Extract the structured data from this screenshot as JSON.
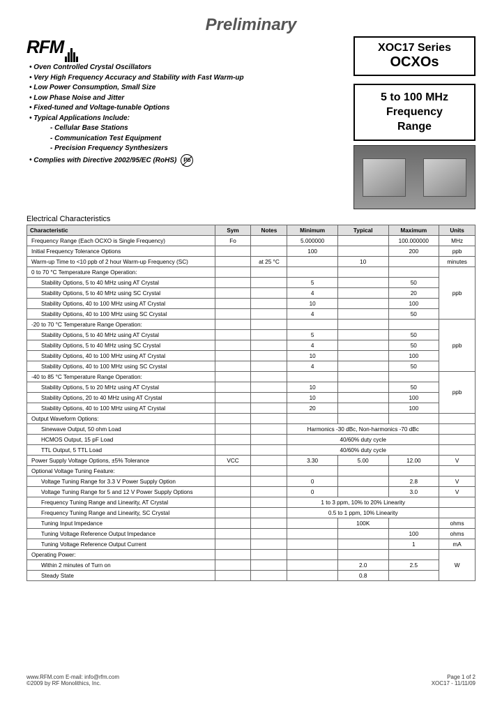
{
  "preliminary": "Preliminary",
  "logo": "RFM",
  "product": {
    "series": "XOC17 Series",
    "type": "OCXOs"
  },
  "freq": {
    "line1": "5 to 100 MHz",
    "line2": "Frequency",
    "line3": "Range"
  },
  "features": [
    "Oven Controlled Crystal Oscillators",
    "Very High Frequency Accuracy and Stability with Fast Warm-up",
    "Low Power Consumption, Small Size",
    "Low Phase Noise and Jitter",
    "Fixed-tuned and Voltage-tunable Options",
    "Typical Applications Include:"
  ],
  "subfeatures": [
    "Cellular Base Stations",
    "Communication Test Equipment",
    "Precision Frequency Synthesizers"
  ],
  "compliance": "Complies with Directive 2002/95/EC (RoHS)",
  "pb": "Pb",
  "sectionTitle": "Electrical Characteristics",
  "headers": [
    "Characteristic",
    "Sym",
    "Notes",
    "Minimum",
    "Typical",
    "Maximum",
    "Units"
  ],
  "rows": [
    {
      "c": "Frequency Range (Each OCXO is Single Frequency)",
      "s": "Fo",
      "n": "",
      "min": "5.000000",
      "typ": "",
      "max": "100.000000",
      "u": "MHz"
    },
    {
      "c": "Initial Frequency Tolerance Options",
      "s": "",
      "n": "",
      "min": "100",
      "typ": "",
      "max": "200",
      "u": "ppb"
    },
    {
      "c": "Warm-up Time to <10 ppb of 2 hour Warm-up Frequency (SC)",
      "s": "",
      "n": "at 25 °C",
      "min": "",
      "typ": "10",
      "max": "",
      "u": "minutes"
    },
    {
      "c": "0 to 70 °C Temperature Range Operation:",
      "group": 4,
      "u": "ppb",
      "items": [
        {
          "c": "Stability Options, 5 to 40 MHz using AT Crystal",
          "min": "5",
          "max": "50"
        },
        {
          "c": "Stability Options, 5 to 40 MHz using SC Crystal",
          "min": "4",
          "max": "20"
        },
        {
          "c": "Stability Options, 40 to 100 MHz using AT Crystal",
          "min": "10",
          "max": "100"
        },
        {
          "c": "Stability Options, 40 to 100 MHz using SC Crystal",
          "min": "4",
          "max": "50"
        }
      ]
    },
    {
      "c": "-20 to 70 °C Temperature Range Operation:",
      "group": 4,
      "u": "ppb",
      "items": [
        {
          "c": "Stability Options, 5 to 40 MHz using AT Crystal",
          "min": "5",
          "max": "50"
        },
        {
          "c": "Stability Options, 5 to 40 MHz using SC Crystal",
          "min": "4",
          "max": "50"
        },
        {
          "c": "Stability Options, 40 to 100 MHz using AT Crystal",
          "min": "10",
          "max": "100"
        },
        {
          "c": "Stability Options, 40 to 100 MHz using SC Crystal",
          "min": "4",
          "max": "50"
        }
      ]
    },
    {
      "c": "-40 to 85 °C Temperature Range Operation:",
      "group": 3,
      "u": "ppb",
      "items": [
        {
          "c": "Stability Options, 5 to 20 MHz using AT Crystal",
          "min": "10",
          "max": "50"
        },
        {
          "c": "Stability Options, 20 to 40 MHz using AT Crystal",
          "min": "10",
          "max": "100"
        },
        {
          "c": "Stability Options, 40 to 100 MHz using AT Crystal",
          "min": "20",
          "max": "100"
        }
      ]
    },
    {
      "c": "Output Waveform Options:",
      "wave": true,
      "items": [
        {
          "c": "Sinewave Output, 50 ohm Load",
          "span": "Harmonics -30 dBc, Non-harmonics -70 dBc"
        },
        {
          "c": "HCMOS Output, 15 pF Load",
          "span": "40/60% duty cycle"
        },
        {
          "c": "TTL Output, 5 TTL Load",
          "span": "40/60% duty cycle"
        }
      ]
    },
    {
      "c": "Power Supply Voltage Options, ±5% Tolerance",
      "s": "VCC",
      "n": "",
      "min": "3.30",
      "typ": "5.00",
      "max": "12.00",
      "u": "V"
    },
    {
      "c": "Optional Voltage Tuning Feature:",
      "opt": true,
      "items": [
        {
          "c": "Voltage Tuning Range for 3.3 V Power Supply Option",
          "min": "0",
          "typ": "",
          "max": "2.8",
          "u": "V"
        },
        {
          "c": "Voltage Tuning Range for 5 and 12 V Power Supply Options",
          "min": "0",
          "typ": "",
          "max": "3.0",
          "u": "V"
        },
        {
          "c": "Frequency Tuning Range and Linearity, AT Crystal",
          "span": "1 to 3 ppm, 10% to 20% Linearity",
          "u": ""
        },
        {
          "c": "Frequency Tuning Range and Linearity, SC Crystal",
          "span": "0.5 to 1 ppm, 10% Linearity",
          "u": ""
        },
        {
          "c": "Tuning Input Impedance",
          "min": "",
          "typ": "100K",
          "max": "",
          "u": "ohms"
        },
        {
          "c": "Tuning Voltage Reference Output Impedance",
          "min": "",
          "typ": "",
          "max": "100",
          "u": "ohms"
        },
        {
          "c": "Tuning Voltage Reference Output Current",
          "min": "",
          "typ": "",
          "max": "1",
          "u": "mA"
        }
      ]
    },
    {
      "c": "Operating Power:",
      "pow": true,
      "u": "W",
      "items": [
        {
          "c": "Within 2 minutes of Turn on",
          "typ": "2.0",
          "max": "2.5"
        },
        {
          "c": "Steady State",
          "typ": "0.8",
          "max": ""
        }
      ]
    }
  ],
  "footer": {
    "left1": "www.RFM.com   E-mail: info@rfm.com",
    "left2": "©2009 by RF Monolithics, Inc.",
    "right1": "Page 1 of 2",
    "right2": "XOC17 - 11/11/09"
  }
}
